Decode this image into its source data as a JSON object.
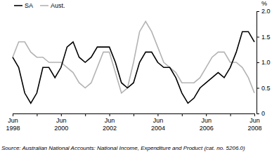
{
  "chart_data": {
    "type": "line",
    "y_label": "%",
    "note": "Source: Australian National Accounts: National Income, Expenditure and Product (cat. no. 5206.0)",
    "categories": [
      "Jun 1998",
      null,
      null,
      null,
      null,
      null,
      null,
      null,
      "Jun 2000",
      null,
      null,
      null,
      null,
      null,
      null,
      null,
      "Jun 2002",
      null,
      null,
      null,
      null,
      null,
      null,
      null,
      "Jun 2004",
      null,
      null,
      null,
      null,
      null,
      null,
      null,
      "Jun 2006",
      null,
      null,
      null,
      null,
      null,
      null,
      null,
      "Jun 2008"
    ],
    "series": [
      {
        "name": "SA",
        "color": "#000000",
        "values": [
          1.1,
          0.9,
          0.4,
          0.2,
          0.4,
          0.9,
          0.9,
          0.7,
          0.9,
          1.3,
          1.4,
          1.1,
          1.0,
          1.1,
          1.3,
          1.3,
          1.3,
          1.0,
          0.6,
          0.5,
          0.6,
          1.0,
          1.2,
          1.2,
          1.0,
          0.9,
          0.9,
          0.7,
          0.4,
          0.2,
          0.3,
          0.5,
          0.6,
          0.7,
          0.8,
          0.7,
          0.9,
          1.2,
          1.6,
          1.6,
          1.4
        ]
      },
      {
        "name": "Aust.",
        "color": "#b3b3b3",
        "values": [
          1.1,
          1.4,
          1.4,
          1.2,
          1.1,
          1.1,
          1.0,
          1.0,
          1.0,
          0.9,
          0.8,
          0.6,
          0.5,
          0.6,
          0.9,
          1.2,
          1.2,
          0.8,
          0.4,
          0.5,
          1.0,
          1.6,
          1.8,
          1.6,
          1.3,
          1.0,
          0.9,
          0.8,
          0.6,
          0.6,
          0.6,
          0.7,
          0.9,
          1.1,
          1.2,
          1.2,
          1.0,
          1.0,
          0.9,
          0.7,
          0.4
        ]
      }
    ],
    "ylim": [
      0,
      2
    ],
    "yticks": [
      0,
      0.5,
      {
        "value": 1,
        "label": "1.0"
      },
      1.5,
      {
        "value": 2,
        "label": "2.0"
      }
    ],
    "legend": "upper left",
    "grid": false
  }
}
